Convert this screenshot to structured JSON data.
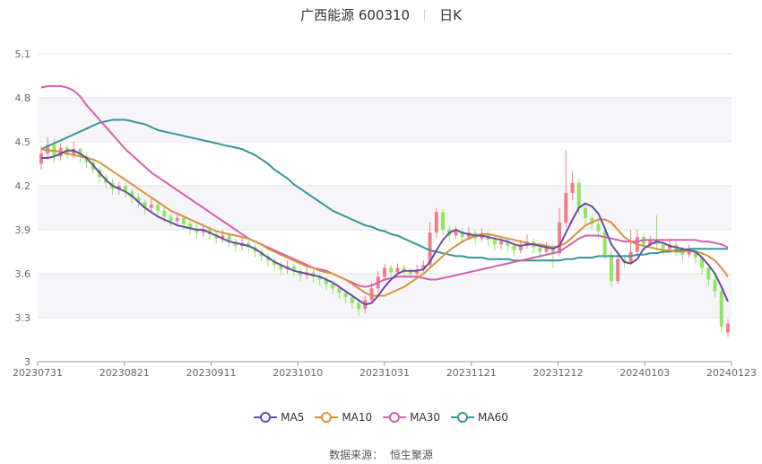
{
  "header": {
    "name": "广西能源 600310",
    "period": "日K"
  },
  "source": {
    "label": "数据来源：",
    "value": "恒生聚源"
  },
  "chart_data": {
    "type": "candlestick",
    "title": "广西能源 600310",
    "y_ticks": [
      "5.1",
      "4.8",
      "4.5",
      "4.2",
      "3.9",
      "3.6",
      "3.3",
      "3"
    ],
    "ylim": [
      3.0,
      5.1
    ],
    "x_ticks": [
      "20230731",
      "20230821",
      "20230911",
      "20231010",
      "20231031",
      "20231121",
      "20231212",
      "20240103",
      "20240123"
    ],
    "colors": {
      "up": "#f07d8a",
      "down": "#8ee85c",
      "MA5": "#6a4ca8",
      "MA10": "#d8913e",
      "MA30": "#d65fae",
      "MA60": "#3a9499"
    },
    "candles": [
      [
        4.35,
        4.42,
        4.31,
        4.47
      ],
      [
        4.42,
        4.48,
        4.38,
        4.53
      ],
      [
        4.48,
        4.4,
        4.36,
        4.52
      ],
      [
        4.4,
        4.46,
        4.37,
        4.49
      ],
      [
        4.46,
        4.41,
        4.38,
        4.48
      ],
      [
        4.41,
        4.45,
        4.39,
        4.5
      ],
      [
        4.45,
        4.4,
        4.36,
        4.46
      ],
      [
        4.4,
        4.36,
        4.32,
        4.42
      ],
      [
        4.36,
        4.31,
        4.28,
        4.38
      ],
      [
        4.31,
        4.26,
        4.22,
        4.33
      ],
      [
        4.26,
        4.22,
        4.18,
        4.28
      ],
      [
        4.22,
        4.18,
        4.14,
        4.25
      ],
      [
        4.18,
        4.2,
        4.14,
        4.23
      ],
      [
        4.2,
        4.16,
        4.12,
        4.22
      ],
      [
        4.16,
        4.12,
        4.08,
        4.18
      ],
      [
        4.12,
        4.09,
        4.05,
        4.15
      ],
      [
        4.09,
        4.05,
        4.01,
        4.11
      ],
      [
        4.05,
        4.07,
        4.02,
        4.12
      ],
      [
        4.07,
        4.03,
        3.98,
        4.09
      ],
      [
        4.03,
        3.99,
        3.95,
        4.05
      ],
      [
        3.99,
        3.96,
        3.92,
        4.01
      ],
      [
        3.96,
        3.98,
        3.93,
        4.02
      ],
      [
        3.98,
        3.94,
        3.9,
        4.0
      ],
      [
        3.94,
        3.91,
        3.87,
        3.96
      ],
      [
        3.91,
        3.88,
        3.84,
        3.94
      ],
      [
        3.88,
        3.9,
        3.85,
        3.94
      ],
      [
        3.9,
        3.87,
        3.83,
        3.92
      ],
      [
        3.87,
        3.84,
        3.8,
        3.89
      ],
      [
        3.84,
        3.86,
        3.81,
        3.9
      ],
      [
        3.86,
        3.82,
        3.78,
        3.88
      ],
      [
        3.82,
        3.79,
        3.75,
        3.84
      ],
      [
        3.79,
        3.81,
        3.76,
        3.85
      ],
      [
        3.81,
        3.78,
        3.74,
        3.83
      ],
      [
        3.78,
        3.75,
        3.71,
        3.8
      ],
      [
        3.75,
        3.72,
        3.68,
        3.77
      ],
      [
        3.72,
        3.69,
        3.65,
        3.74
      ],
      [
        3.69,
        3.66,
        3.62,
        3.71
      ],
      [
        3.66,
        3.63,
        3.59,
        3.68
      ],
      [
        3.63,
        3.65,
        3.6,
        3.69
      ],
      [
        3.65,
        3.62,
        3.58,
        3.67
      ],
      [
        3.62,
        3.59,
        3.55,
        3.64
      ],
      [
        3.59,
        3.61,
        3.56,
        3.65
      ],
      [
        3.61,
        3.58,
        3.54,
        3.63
      ],
      [
        3.58,
        3.56,
        3.52,
        3.6
      ],
      [
        3.56,
        3.53,
        3.49,
        3.58
      ],
      [
        3.53,
        3.5,
        3.46,
        3.55
      ],
      [
        3.5,
        3.47,
        3.43,
        3.52
      ],
      [
        3.47,
        3.44,
        3.4,
        3.49
      ],
      [
        3.44,
        3.4,
        3.36,
        3.46
      ],
      [
        3.4,
        3.36,
        3.31,
        3.42
      ],
      [
        3.36,
        3.42,
        3.33,
        3.45
      ],
      [
        3.42,
        3.5,
        3.4,
        3.54
      ],
      [
        3.5,
        3.58,
        3.47,
        3.62
      ],
      [
        3.58,
        3.64,
        3.55,
        3.67
      ],
      [
        3.64,
        3.61,
        3.58,
        3.66
      ],
      [
        3.61,
        3.64,
        3.59,
        3.67
      ],
      [
        3.64,
        3.62,
        3.59,
        3.66
      ],
      [
        3.62,
        3.6,
        3.57,
        3.64
      ],
      [
        3.6,
        3.63,
        3.58,
        3.66
      ],
      [
        3.63,
        3.66,
        3.61,
        3.69
      ],
      [
        3.66,
        3.88,
        3.64,
        3.95
      ],
      [
        3.88,
        4.02,
        3.84,
        4.05
      ],
      [
        4.02,
        3.9,
        3.86,
        4.04
      ],
      [
        3.9,
        3.86,
        3.82,
        3.93
      ],
      [
        3.86,
        3.89,
        3.84,
        3.92
      ],
      [
        3.89,
        3.85,
        3.81,
        3.91
      ],
      [
        3.85,
        3.88,
        3.83,
        3.92
      ],
      [
        3.88,
        3.84,
        3.8,
        3.9
      ],
      [
        3.84,
        3.87,
        3.82,
        3.91
      ],
      [
        3.87,
        3.83,
        3.79,
        3.89
      ],
      [
        3.83,
        3.8,
        3.76,
        3.85
      ],
      [
        3.8,
        3.82,
        3.77,
        3.86
      ],
      [
        3.82,
        3.79,
        3.75,
        3.84
      ],
      [
        3.79,
        3.76,
        3.72,
        3.81
      ],
      [
        3.76,
        3.79,
        3.74,
        3.83
      ],
      [
        3.79,
        3.82,
        3.77,
        3.87
      ],
      [
        3.82,
        3.78,
        3.74,
        3.84
      ],
      [
        3.78,
        3.75,
        3.71,
        3.8
      ],
      [
        3.75,
        3.78,
        3.73,
        3.82
      ],
      [
        3.78,
        3.74,
        3.64,
        3.8
      ],
      [
        3.74,
        3.95,
        3.72,
        4.05
      ],
      [
        3.95,
        4.15,
        3.92,
        4.44
      ],
      [
        4.15,
        4.22,
        4.1,
        4.3
      ],
      [
        4.22,
        4.05,
        4.0,
        4.25
      ],
      [
        4.05,
        3.98,
        3.94,
        4.08
      ],
      [
        3.98,
        3.94,
        3.9,
        4.0
      ],
      [
        3.94,
        3.89,
        3.84,
        3.97
      ],
      [
        3.89,
        3.73,
        3.7,
        3.92
      ],
      [
        3.73,
        3.55,
        3.52,
        3.76
      ],
      [
        3.55,
        3.7,
        3.53,
        3.75
      ],
      [
        3.7,
        3.68,
        3.64,
        3.73
      ],
      [
        3.68,
        3.75,
        3.66,
        3.9
      ],
      [
        3.75,
        3.85,
        3.73,
        3.9
      ],
      [
        3.85,
        3.8,
        3.76,
        3.88
      ],
      [
        3.8,
        3.83,
        3.78,
        3.86
      ],
      [
        3.83,
        3.8,
        3.76,
        4.0
      ],
      [
        3.8,
        3.77,
        3.73,
        3.82
      ],
      [
        3.77,
        3.8,
        3.75,
        3.84
      ],
      [
        3.8,
        3.76,
        3.72,
        3.82
      ],
      [
        3.76,
        3.73,
        3.69,
        3.78
      ],
      [
        3.73,
        3.76,
        3.71,
        3.8
      ],
      [
        3.76,
        3.71,
        3.67,
        3.78
      ],
      [
        3.71,
        3.64,
        3.6,
        3.74
      ],
      [
        3.64,
        3.56,
        3.52,
        3.66
      ],
      [
        3.56,
        3.48,
        3.44,
        3.58
      ],
      [
        3.48,
        3.24,
        3.2,
        3.5
      ],
      [
        3.2,
        3.26,
        3.17,
        3.29
      ]
    ],
    "MA5": [
      4.39,
      4.39,
      4.4,
      4.42,
      4.44,
      4.44,
      4.42,
      4.39,
      4.34,
      4.29,
      4.24,
      4.2,
      4.18,
      4.16,
      4.13,
      4.09,
      4.05,
      4.02,
      3.99,
      3.97,
      3.95,
      3.93,
      3.92,
      3.91,
      3.9,
      3.9,
      3.88,
      3.86,
      3.84,
      3.82,
      3.81,
      3.8,
      3.79,
      3.77,
      3.74,
      3.71,
      3.68,
      3.66,
      3.64,
      3.62,
      3.61,
      3.6,
      3.59,
      3.58,
      3.56,
      3.54,
      3.51,
      3.48,
      3.45,
      3.42,
      3.39,
      3.4,
      3.45,
      3.51,
      3.56,
      3.6,
      3.62,
      3.62,
      3.62,
      3.63,
      3.68,
      3.76,
      3.83,
      3.88,
      3.9,
      3.88,
      3.87,
      3.86,
      3.86,
      3.85,
      3.84,
      3.83,
      3.82,
      3.8,
      3.79,
      3.8,
      3.8,
      3.79,
      3.78,
      3.77,
      3.79,
      3.88,
      3.97,
      4.05,
      4.08,
      4.06,
      4.01,
      3.91,
      3.8,
      3.74,
      3.68,
      3.67,
      3.7,
      3.77,
      3.8,
      3.82,
      3.81,
      3.79,
      3.78,
      3.77,
      3.76,
      3.75,
      3.71,
      3.66,
      3.6,
      3.51,
      3.41
    ],
    "MA10": [
      4.45,
      4.44,
      4.44,
      4.43,
      4.42,
      4.41,
      4.4,
      4.39,
      4.38,
      4.36,
      4.33,
      4.3,
      4.27,
      4.24,
      4.21,
      4.18,
      4.15,
      4.12,
      4.09,
      4.06,
      4.03,
      4.01,
      3.99,
      3.97,
      3.95,
      3.93,
      3.91,
      3.89,
      3.88,
      3.87,
      3.86,
      3.85,
      3.84,
      3.82,
      3.8,
      3.77,
      3.75,
      3.73,
      3.71,
      3.69,
      3.67,
      3.65,
      3.64,
      3.62,
      3.61,
      3.6,
      3.58,
      3.56,
      3.53,
      3.5,
      3.47,
      3.45,
      3.45,
      3.45,
      3.47,
      3.49,
      3.51,
      3.54,
      3.57,
      3.6,
      3.64,
      3.68,
      3.72,
      3.76,
      3.79,
      3.82,
      3.84,
      3.86,
      3.87,
      3.87,
      3.86,
      3.85,
      3.84,
      3.83,
      3.82,
      3.81,
      3.8,
      3.8,
      3.79,
      3.78,
      3.79,
      3.81,
      3.85,
      3.89,
      3.93,
      3.95,
      3.97,
      3.97,
      3.95,
      3.9,
      3.85,
      3.82,
      3.8,
      3.79,
      3.78,
      3.77,
      3.76,
      3.76,
      3.75,
      3.75,
      3.76,
      3.75,
      3.74,
      3.72,
      3.69,
      3.64,
      3.58
    ],
    "MA30": [
      4.87,
      4.88,
      4.88,
      4.88,
      4.87,
      4.85,
      4.81,
      4.75,
      4.7,
      4.65,
      4.6,
      4.55,
      4.5,
      4.45,
      4.41,
      4.37,
      4.33,
      4.29,
      4.26,
      4.23,
      4.2,
      4.17,
      4.14,
      4.11,
      4.08,
      4.05,
      4.02,
      3.99,
      3.96,
      3.93,
      3.9,
      3.87,
      3.84,
      3.82,
      3.8,
      3.78,
      3.76,
      3.74,
      3.72,
      3.7,
      3.68,
      3.66,
      3.64,
      3.63,
      3.62,
      3.6,
      3.58,
      3.56,
      3.54,
      3.52,
      3.51,
      3.52,
      3.54,
      3.56,
      3.57,
      3.58,
      3.58,
      3.58,
      3.58,
      3.57,
      3.56,
      3.56,
      3.57,
      3.58,
      3.59,
      3.6,
      3.61,
      3.62,
      3.63,
      3.64,
      3.65,
      3.66,
      3.67,
      3.68,
      3.69,
      3.7,
      3.71,
      3.72,
      3.73,
      3.74,
      3.75,
      3.78,
      3.81,
      3.84,
      3.86,
      3.86,
      3.86,
      3.85,
      3.84,
      3.83,
      3.82,
      3.82,
      3.82,
      3.83,
      3.83,
      3.83,
      3.83,
      3.83,
      3.83,
      3.83,
      3.83,
      3.83,
      3.82,
      3.82,
      3.81,
      3.8,
      3.78
    ],
    "MA60": [
      4.45,
      4.47,
      4.49,
      4.51,
      4.53,
      4.55,
      4.57,
      4.59,
      4.61,
      4.63,
      4.64,
      4.65,
      4.65,
      4.65,
      4.64,
      4.63,
      4.62,
      4.6,
      4.58,
      4.57,
      4.56,
      4.55,
      4.54,
      4.53,
      4.52,
      4.51,
      4.5,
      4.49,
      4.48,
      4.47,
      4.46,
      4.45,
      4.43,
      4.41,
      4.38,
      4.35,
      4.31,
      4.28,
      4.25,
      4.21,
      4.18,
      4.15,
      4.12,
      4.09,
      4.06,
      4.03,
      4.01,
      3.99,
      3.97,
      3.95,
      3.93,
      3.92,
      3.9,
      3.89,
      3.87,
      3.86,
      3.84,
      3.82,
      3.8,
      3.78,
      3.76,
      3.75,
      3.74,
      3.73,
      3.72,
      3.72,
      3.71,
      3.71,
      3.71,
      3.7,
      3.7,
      3.7,
      3.7,
      3.69,
      3.69,
      3.69,
      3.69,
      3.69,
      3.69,
      3.69,
      3.69,
      3.7,
      3.7,
      3.71,
      3.71,
      3.71,
      3.72,
      3.72,
      3.72,
      3.72,
      3.72,
      3.72,
      3.73,
      3.73,
      3.74,
      3.74,
      3.75,
      3.75,
      3.76,
      3.76,
      3.77,
      3.77,
      3.77,
      3.77,
      3.77,
      3.77,
      3.77
    ],
    "legend": [
      "MA5",
      "MA10",
      "MA30",
      "MA60"
    ],
    "grid": true,
    "alternating_bands": true
  }
}
